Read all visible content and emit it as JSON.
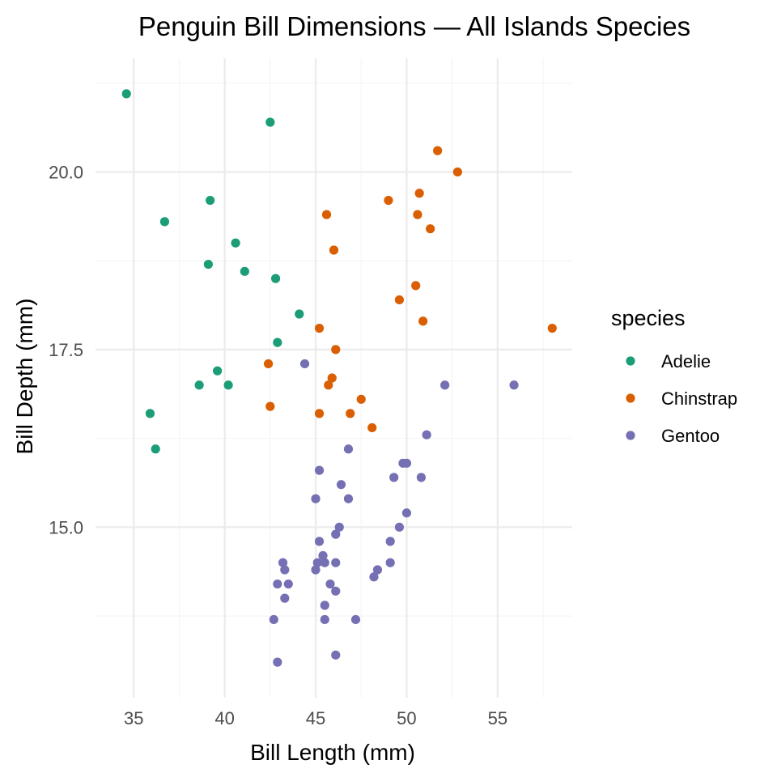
{
  "chart_data": {
    "type": "scatter",
    "title": "Penguin Bill Dimensions — All Islands Species",
    "xlabel": "Bill Length (mm)",
    "ylabel": "Bill Depth (mm)",
    "xlim": [
      32.9,
      59.1
    ],
    "ylim": [
      12.6,
      21.6
    ],
    "x_ticks": [
      35,
      40,
      45,
      50,
      55
    ],
    "x_tick_labels": [
      "35",
      "40",
      "45",
      "50",
      "55"
    ],
    "y_ticks": [
      15,
      17.5,
      20
    ],
    "y_tick_labels": [
      "15.0",
      "17.5",
      "20.0"
    ],
    "grid": true,
    "legend": {
      "title": "species",
      "position": "right"
    },
    "series": [
      {
        "name": "Adelie",
        "color": "#1b9e77",
        "points": [
          [
            34.6,
            21.1
          ],
          [
            42.5,
            20.7
          ],
          [
            39.2,
            19.6
          ],
          [
            36.7,
            19.3
          ],
          [
            40.6,
            19.0
          ],
          [
            39.1,
            18.7
          ],
          [
            41.1,
            18.6
          ],
          [
            42.8,
            18.5
          ],
          [
            44.1,
            18.0
          ],
          [
            42.9,
            17.6
          ],
          [
            39.6,
            17.2
          ],
          [
            38.6,
            17.0
          ],
          [
            40.2,
            17.0
          ],
          [
            35.9,
            16.6
          ],
          [
            36.2,
            16.1
          ]
        ]
      },
      {
        "name": "Chinstrap",
        "color": "#d95f02",
        "points": [
          [
            51.7,
            20.3
          ],
          [
            52.8,
            20.0
          ],
          [
            50.7,
            19.7
          ],
          [
            49.0,
            19.6
          ],
          [
            45.6,
            19.4
          ],
          [
            50.6,
            19.4
          ],
          [
            51.3,
            19.2
          ],
          [
            46.0,
            18.9
          ],
          [
            50.5,
            18.4
          ],
          [
            49.6,
            18.2
          ],
          [
            50.9,
            17.9
          ],
          [
            58.0,
            17.8
          ],
          [
            45.2,
            17.8
          ],
          [
            46.1,
            17.5
          ],
          [
            42.4,
            17.3
          ],
          [
            45.9,
            17.1
          ],
          [
            45.7,
            17.0
          ],
          [
            47.5,
            16.8
          ],
          [
            42.5,
            16.7
          ],
          [
            45.2,
            16.6
          ],
          [
            46.9,
            16.6
          ],
          [
            48.1,
            16.4
          ]
        ]
      },
      {
        "name": "Gentoo",
        "color": "#7570b3",
        "points": [
          [
            44.4,
            17.3
          ],
          [
            52.1,
            17.0
          ],
          [
            55.9,
            17.0
          ],
          [
            51.1,
            16.3
          ],
          [
            46.8,
            16.1
          ],
          [
            49.8,
            15.9
          ],
          [
            50.0,
            15.9
          ],
          [
            45.2,
            15.8
          ],
          [
            49.3,
            15.7
          ],
          [
            50.8,
            15.7
          ],
          [
            46.4,
            15.6
          ],
          [
            45.0,
            15.4
          ],
          [
            46.8,
            15.4
          ],
          [
            50.0,
            15.2
          ],
          [
            49.6,
            15.0
          ],
          [
            46.3,
            15.0
          ],
          [
            46.1,
            14.9
          ],
          [
            45.2,
            14.8
          ],
          [
            49.1,
            14.8
          ],
          [
            45.4,
            14.6
          ],
          [
            43.2,
            14.5
          ],
          [
            45.1,
            14.5
          ],
          [
            45.5,
            14.5
          ],
          [
            46.1,
            14.5
          ],
          [
            49.1,
            14.5
          ],
          [
            43.3,
            14.4
          ],
          [
            45.0,
            14.4
          ],
          [
            48.4,
            14.4
          ],
          [
            48.2,
            14.3
          ],
          [
            42.9,
            14.2
          ],
          [
            43.5,
            14.2
          ],
          [
            45.8,
            14.2
          ],
          [
            46.1,
            14.1
          ],
          [
            43.3,
            14.0
          ],
          [
            45.5,
            13.9
          ],
          [
            42.7,
            13.7
          ],
          [
            45.5,
            13.7
          ],
          [
            47.2,
            13.7
          ],
          [
            46.1,
            13.2
          ],
          [
            42.9,
            13.1
          ]
        ]
      }
    ]
  }
}
